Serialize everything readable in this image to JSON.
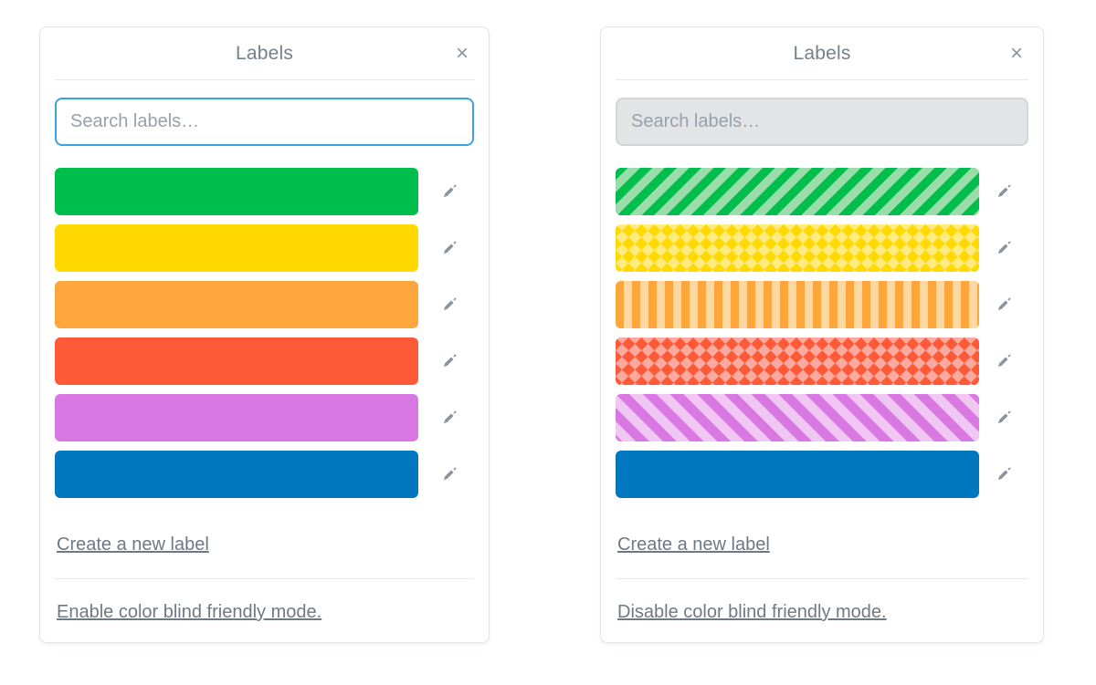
{
  "colors": {
    "focus_border": "#39a3e0",
    "input_bg_unfocused": "#e2e4e6",
    "input_border_unfocused": "#d2d6d9",
    "divider": "#e5e7e9",
    "icon_gray": "#8b939c",
    "title_gray": "#75808a",
    "link_gray": "#6e7984"
  },
  "panels": [
    {
      "id": "labels-normal-mode",
      "title": "Labels",
      "close_icon": "×",
      "search": {
        "placeholder": "Search labels…",
        "value": "",
        "state": "focused"
      },
      "labels": [
        {
          "color_name": "green",
          "pattern": "solid",
          "color": "#00be4c",
          "color2": null
        },
        {
          "color_name": "yellow",
          "pattern": "solid",
          "color": "#ffd900",
          "color2": null
        },
        {
          "color_name": "orange",
          "pattern": "solid",
          "color": "#fda63c",
          "color2": null
        },
        {
          "color_name": "red",
          "pattern": "solid",
          "color": "#fe5a38",
          "color2": null
        },
        {
          "color_name": "purple",
          "pattern": "solid",
          "color": "#d978e2",
          "color2": null
        },
        {
          "color_name": "blue",
          "pattern": "solid",
          "color": "#0077be",
          "color2": null
        }
      ],
      "create_label_link": "Create a new label",
      "color_blind_link": "Enable color blind friendly mode."
    },
    {
      "id": "labels-color-blind-mode",
      "title": "Labels",
      "close_icon": "×",
      "search": {
        "placeholder": "Search labels…",
        "value": "",
        "state": "unfocused"
      },
      "labels": [
        {
          "color_name": "green",
          "pattern": "diagonal-stripes-down",
          "color": "#00be4c",
          "color2": "#9bdcab"
        },
        {
          "color_name": "yellow",
          "pattern": "diamonds",
          "color": "#ffd900",
          "color2": "#ffeb80"
        },
        {
          "color_name": "orange",
          "pattern": "vertical-stripes",
          "color": "#fda63c",
          "color2": "#fdd8a2"
        },
        {
          "color_name": "red",
          "pattern": "diamonds",
          "color": "#fe5a38",
          "color2": "#fcaaa0"
        },
        {
          "color_name": "purple",
          "pattern": "diagonal-stripes-up",
          "color": "#d978e2",
          "color2": "#f0c7f2"
        },
        {
          "color_name": "blue",
          "pattern": "solid",
          "color": "#0077be",
          "color2": null
        }
      ],
      "create_label_link": "Create a new label",
      "color_blind_link": "Disable color blind friendly mode."
    }
  ]
}
